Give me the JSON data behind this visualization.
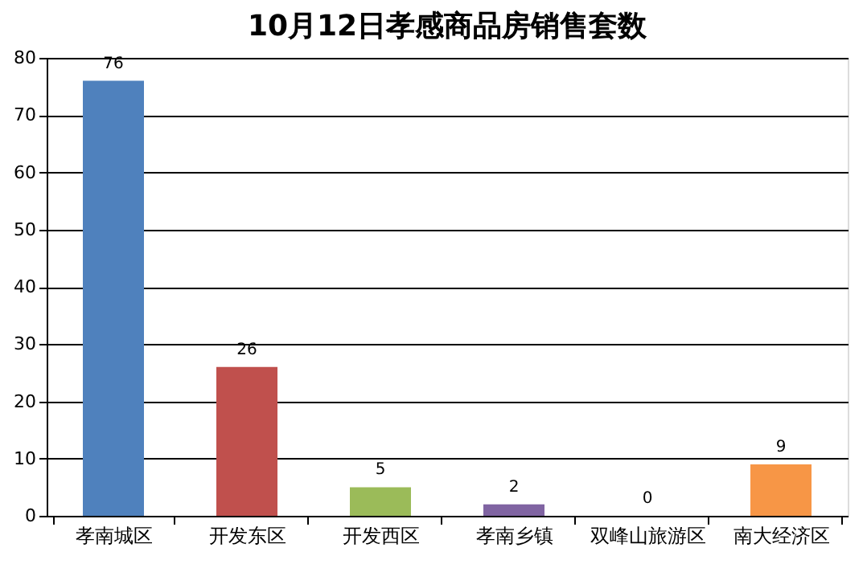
{
  "chart_data": {
    "type": "bar",
    "title": "10月12日孝感商品房销售套数",
    "categories": [
      "孝南城区",
      "开发东区",
      "开发西区",
      "孝南乡镇",
      "双峰山旅游区",
      "南大经济区"
    ],
    "values": [
      76,
      26,
      5,
      2,
      0,
      9
    ],
    "colors": [
      "#4f81bd",
      "#c0504d",
      "#9bbb59",
      "#8064a2",
      "#4bacc6",
      "#f79646"
    ],
    "ylim": [
      0,
      80
    ],
    "yticks": [
      0,
      10,
      20,
      30,
      40,
      50,
      60,
      70,
      80
    ],
    "grid": "y",
    "data_labels": true
  }
}
